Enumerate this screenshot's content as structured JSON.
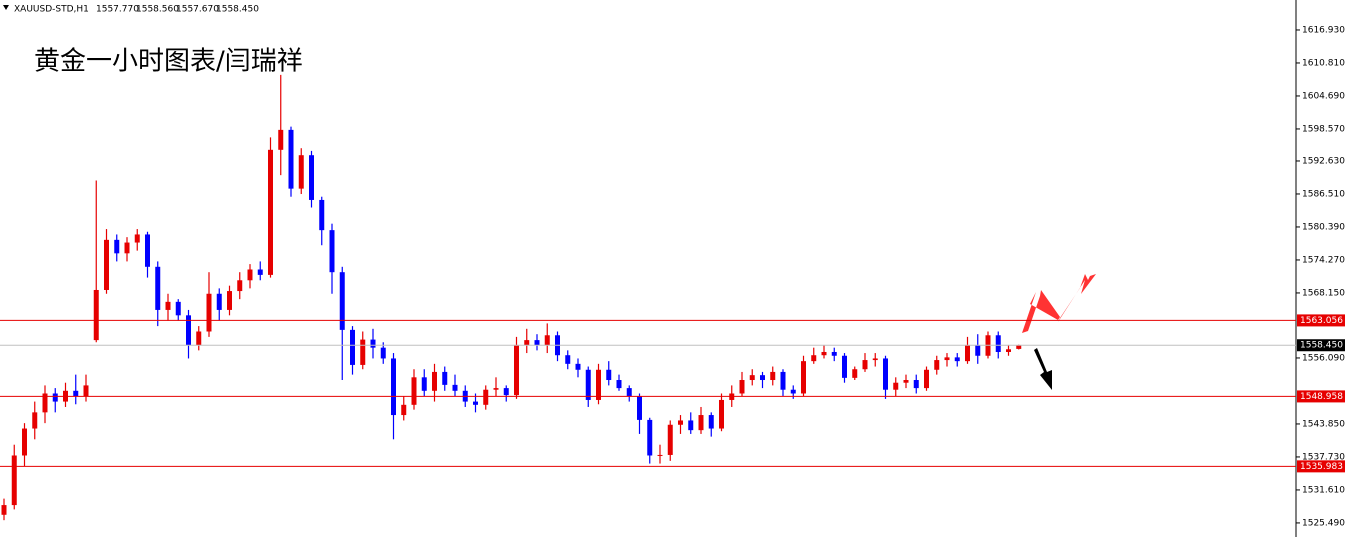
{
  "chart_data": {
    "type": "candlestick",
    "symbol": "XAUUSD-STD,H1",
    "header_values": [
      "1557.770",
      "1558.560",
      "1557.670",
      "1558.450"
    ],
    "title": "黄金一小时图表/闫瑞祥",
    "up_color": "#e60000",
    "down_color": "#0000ff",
    "ylim": [
      1522.88,
      1622.49
    ],
    "yticks": [
      {
        "value": 1616.93,
        "label": "1616.930"
      },
      {
        "value": 1610.81,
        "label": "1610.810"
      },
      {
        "value": 1604.69,
        "label": "1604.690"
      },
      {
        "value": 1598.57,
        "label": "1598.570"
      },
      {
        "value": 1592.63,
        "label": "1592.630"
      },
      {
        "value": 1586.51,
        "label": "1586.510"
      },
      {
        "value": 1580.39,
        "label": "1580.390"
      },
      {
        "value": 1574.27,
        "label": "1574.270"
      },
      {
        "value": 1568.15,
        "label": "1568.150"
      },
      {
        "value": 1556.09,
        "label": "1556.090"
      },
      {
        "value": 1543.85,
        "label": "1543.850"
      },
      {
        "value": 1537.73,
        "label": "1537.730"
      },
      {
        "value": 1531.61,
        "label": "1531.610"
      },
      {
        "value": 1525.49,
        "label": "1525.490"
      }
    ],
    "levels": [
      1563.056,
      1548.958,
      1535.983
    ],
    "level_color": "#e60000",
    "current_price": {
      "value": 1558.45,
      "label": "1558.450"
    },
    "candles": [
      [
        1527,
        1530,
        1526,
        1528.8
      ],
      [
        1528.8,
        1540,
        1528,
        1538
      ],
      [
        1538,
        1544,
        1536,
        1543
      ],
      [
        1543,
        1548,
        1541,
        1546
      ],
      [
        1546,
        1551,
        1544,
        1549.5
      ],
      [
        1549.5,
        1550.5,
        1546,
        1548
      ],
      [
        1548,
        1551.5,
        1547,
        1550
      ],
      [
        1550,
        1553,
        1547.5,
        1549
      ],
      [
        1549,
        1553,
        1548,
        1551
      ],
      [
        1559.4,
        1589,
        1559,
        1568.7
      ],
      [
        1568.7,
        1580,
        1568,
        1578
      ],
      [
        1578,
        1579,
        1574,
        1575.5
      ],
      [
        1575.5,
        1578.5,
        1574,
        1577.5
      ],
      [
        1577.5,
        1580,
        1576,
        1579
      ],
      [
        1579,
        1579.5,
        1571,
        1573
      ],
      [
        1573,
        1574,
        1562,
        1565
      ],
      [
        1565,
        1568,
        1563,
        1566.5
      ],
      [
        1566.5,
        1567,
        1563,
        1564
      ],
      [
        1564,
        1565,
        1556,
        1558.5
      ],
      [
        1558.5,
        1562,
        1557.5,
        1561
      ],
      [
        1561,
        1572,
        1560,
        1568
      ],
      [
        1568,
        1569,
        1563,
        1565
      ],
      [
        1565,
        1569.5,
        1564,
        1568.5
      ],
      [
        1568.5,
        1572,
        1567,
        1570.5
      ],
      [
        1570.5,
        1573.5,
        1569,
        1572.5
      ],
      [
        1572.5,
        1574,
        1570.5,
        1571.5
      ],
      [
        1571.5,
        1597,
        1571,
        1594.7
      ],
      [
        1594.7,
        1608.6,
        1590,
        1598.4
      ],
      [
        1598.4,
        1599,
        1586,
        1587.5
      ],
      [
        1587.5,
        1595,
        1586.5,
        1593.7
      ],
      [
        1593.7,
        1594.5,
        1584,
        1585.4
      ],
      [
        1585.4,
        1586,
        1577,
        1579.8
      ],
      [
        1579.8,
        1581,
        1568,
        1572
      ],
      [
        1572,
        1573,
        1552,
        1561.3
      ],
      [
        1561.3,
        1562,
        1553,
        1554.8
      ],
      [
        1554.8,
        1561,
        1554,
        1559.5
      ],
      [
        1559.5,
        1561.5,
        1556,
        1558
      ],
      [
        1558,
        1559,
        1555,
        1556
      ],
      [
        1556,
        1557,
        1541,
        1545.5
      ],
      [
        1545.5,
        1549,
        1544.5,
        1547.4
      ],
      [
        1547.4,
        1554,
        1546.5,
        1552.5
      ],
      [
        1552.5,
        1554,
        1549,
        1550
      ],
      [
        1550,
        1555,
        1548,
        1553.5
      ],
      [
        1553.5,
        1554.5,
        1550,
        1551.1
      ],
      [
        1551.1,
        1553,
        1549,
        1550
      ],
      [
        1550,
        1551,
        1547,
        1548
      ],
      [
        1548,
        1549.5,
        1546,
        1547.4
      ],
      [
        1547.4,
        1551,
        1546.5,
        1550.2
      ],
      [
        1550.2,
        1552.5,
        1549,
        1550.5
      ],
      [
        1550.5,
        1551,
        1548,
        1549.2
      ],
      [
        1549.2,
        1560,
        1548.5,
        1558.5
      ],
      [
        1558.5,
        1561.5,
        1557,
        1559.4
      ],
      [
        1559.4,
        1560.5,
        1557.5,
        1558.5
      ],
      [
        1558.5,
        1562.5,
        1557,
        1560.3
      ],
      [
        1560.3,
        1561,
        1555.5,
        1556.6
      ],
      [
        1556.6,
        1557.5,
        1554,
        1555
      ],
      [
        1555,
        1556,
        1552.5,
        1553.9
      ],
      [
        1553.9,
        1554.5,
        1547,
        1548.3
      ],
      [
        1548.3,
        1555,
        1547.5,
        1553.9
      ],
      [
        1553.9,
        1555.5,
        1551,
        1552
      ],
      [
        1552,
        1553,
        1550,
        1550.5
      ],
      [
        1550.5,
        1551,
        1548,
        1549
      ],
      [
        1549,
        1549.5,
        1542,
        1544.6
      ],
      [
        1544.6,
        1545,
        1536.5,
        1538
      ],
      [
        1538,
        1540,
        1536.5,
        1538.1
      ],
      [
        1538.1,
        1544.5,
        1537,
        1543.7
      ],
      [
        1543.7,
        1545.5,
        1542,
        1544.5
      ],
      [
        1544.5,
        1546,
        1542,
        1542.7
      ],
      [
        1542.7,
        1547,
        1542,
        1545.5
      ],
      [
        1545.5,
        1546,
        1541.5,
        1543
      ],
      [
        1543,
        1549.5,
        1542.5,
        1548.3
      ],
      [
        1548.3,
        1551,
        1547,
        1549.5
      ],
      [
        1549.5,
        1553.5,
        1549,
        1552
      ],
      [
        1552,
        1554,
        1551,
        1552.9
      ],
      [
        1552.9,
        1553.5,
        1550.5,
        1552
      ],
      [
        1552,
        1554.5,
        1551,
        1553.5
      ],
      [
        1553.5,
        1554,
        1549,
        1550.2
      ],
      [
        1550.2,
        1551,
        1548.5,
        1549.5
      ],
      [
        1549.5,
        1556.5,
        1549,
        1555.5
      ],
      [
        1555.5,
        1558,
        1555,
        1556.6
      ],
      [
        1556.6,
        1558.5,
        1556,
        1557.2
      ],
      [
        1557.2,
        1558,
        1555.5,
        1556.5
      ],
      [
        1556.5,
        1557,
        1551.5,
        1552.4
      ],
      [
        1552.4,
        1554.5,
        1552,
        1554
      ],
      [
        1554,
        1557,
        1553.5,
        1555.7
      ],
      [
        1555.7,
        1557,
        1554.5,
        1556
      ],
      [
        1556,
        1556.5,
        1548.5,
        1550.2
      ],
      [
        1550.2,
        1552.5,
        1549,
        1551.5
      ],
      [
        1551.5,
        1553,
        1550.5,
        1552
      ],
      [
        1552,
        1553,
        1549.5,
        1550.5
      ],
      [
        1550.5,
        1554.5,
        1550,
        1553.9
      ],
      [
        1553.9,
        1556.5,
        1553,
        1555.7
      ],
      [
        1555.7,
        1557,
        1554.5,
        1556.2
      ],
      [
        1556.2,
        1557,
        1554.5,
        1555.5
      ],
      [
        1555.5,
        1560,
        1555,
        1558.5
      ],
      [
        1558.5,
        1560.5,
        1555,
        1556.5
      ],
      [
        1556.5,
        1561,
        1556,
        1560.3
      ],
      [
        1560.3,
        1561,
        1556,
        1557.2
      ],
      [
        1557.2,
        1558.5,
        1556.5,
        1557.7
      ],
      [
        1557.77,
        1558.56,
        1557.67,
        1558.45
      ]
    ]
  }
}
